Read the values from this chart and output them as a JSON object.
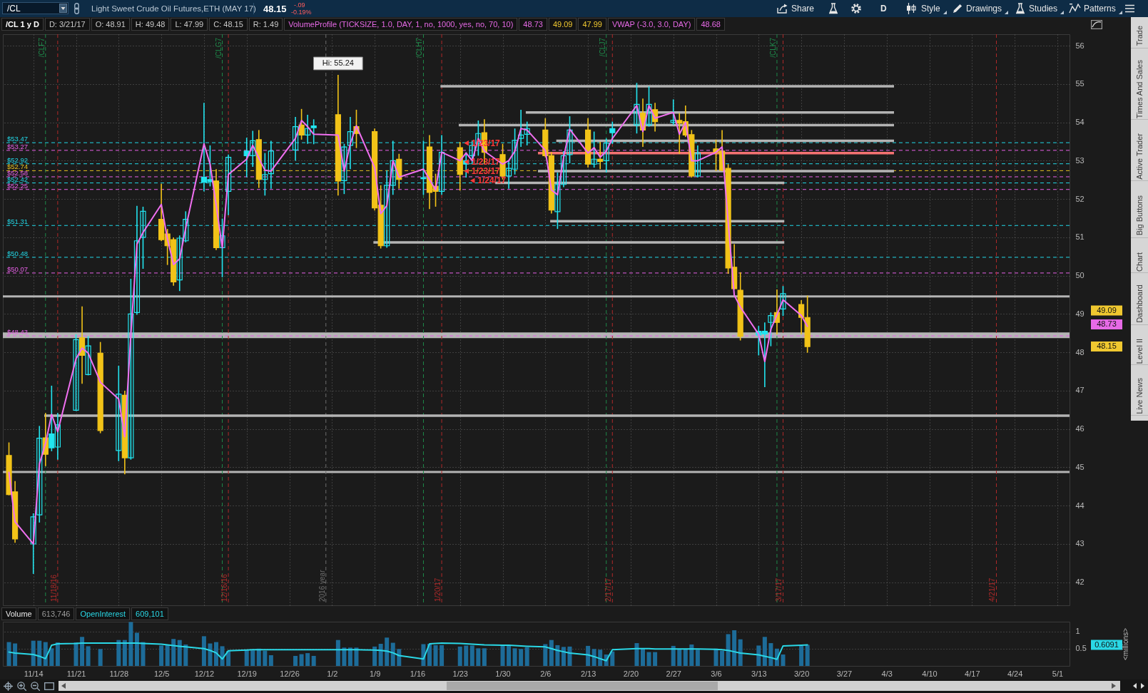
{
  "chart_data": [
    {
      "type": "other",
      "title": "Light Sweet Crude Oil Futures,ETH (MAY 17)",
      "annotations": [
        "/CL",
        "48.15",
        "-.09",
        "-0.19%",
        "Share",
        "D",
        "Style",
        "Drawings",
        "Studies",
        "Patterns"
      ]
    },
    {
      "type": "candlestick",
      "title": "/CL 1 y D",
      "annotations": [
        "D: 3/21/17",
        "O: 48.91",
        "H: 49.48",
        "L: 47.99",
        "C: 48.15",
        "R: 1.49",
        "VolumeProfile (TICKSIZE, 1.0, DAY, 1, no, 1000, yes, no, 70, 10)",
        "48.73",
        "49.09",
        "47.99",
        "VWAP (-3.0, 3.0, DAY)",
        "48.68",
        "49.09",
        "48.73",
        "48.15",
        {
          "text": "Hi: 55.24",
          "x": "2017-01-03",
          "y": 55.24
        },
        {
          "text": "1/23/17",
          "x": "2017-01-23",
          "y": 53.46
        },
        {
          "text": "1/23/17",
          "x": "2017-01-23",
          "y": 52.97
        },
        {
          "text": "1/23/17",
          "x": "2017-01-23",
          "y": 52.73
        },
        {
          "text": "1/24/17",
          "x": "2017-01-24",
          "y": 52.48
        }
      ],
      "x": [
        "2016-11-10",
        "2016-11-11",
        "2016-11-14",
        "2016-11-15",
        "2016-11-16",
        "2016-11-17",
        "2016-11-18",
        "2016-11-21",
        "2016-11-22",
        "2016-11-23",
        "2016-11-25",
        "2016-11-28",
        "2016-11-29",
        "2016-11-30",
        "2016-12-01",
        "2016-12-02",
        "2016-12-05",
        "2016-12-06",
        "2016-12-07",
        "2016-12-08",
        "2016-12-09",
        "2016-12-12",
        "2016-12-13",
        "2016-12-14",
        "2016-12-15",
        "2016-12-16",
        "2016-12-19",
        "2016-12-20",
        "2016-12-21",
        "2016-12-22",
        "2016-12-23",
        "2016-12-27",
        "2016-12-28",
        "2016-12-29",
        "2016-12-30",
        "2017-01-03",
        "2017-01-04",
        "2017-01-05",
        "2017-01-06",
        "2017-01-09",
        "2017-01-10",
        "2017-01-11",
        "2017-01-12",
        "2017-01-13",
        "2017-01-17",
        "2017-01-18",
        "2017-01-19",
        "2017-01-20",
        "2017-01-23",
        "2017-01-24",
        "2017-01-25",
        "2017-01-26",
        "2017-01-27",
        "2017-01-30",
        "2017-01-31",
        "2017-02-01",
        "2017-02-02",
        "2017-02-03",
        "2017-02-06",
        "2017-02-07",
        "2017-02-08",
        "2017-02-09",
        "2017-02-10",
        "2017-02-13",
        "2017-02-14",
        "2017-02-15",
        "2017-02-16",
        "2017-02-17",
        "2017-02-21",
        "2017-02-22",
        "2017-02-23",
        "2017-02-24",
        "2017-02-27",
        "2017-02-28",
        "2017-03-01",
        "2017-03-02",
        "2017-03-03",
        "2017-03-06",
        "2017-03-07",
        "2017-03-08",
        "2017-03-09",
        "2017-03-10",
        "2017-03-13",
        "2017-03-14",
        "2017-03-15",
        "2017-03-16",
        "2017-03-17",
        "2017-03-20",
        "2017-03-21"
      ],
      "ohlc": [
        [
          45.31,
          45.65,
          44.27,
          44.29
        ],
        [
          44.36,
          44.64,
          43.03,
          43.13
        ],
        [
          43.0,
          43.8,
          42.22,
          43.71
        ],
        [
          43.76,
          46.08,
          43.56,
          45.76
        ],
        [
          45.77,
          46.42,
          45.03,
          45.34
        ],
        [
          45.87,
          47.13,
          45.42,
          45.51
        ],
        [
          45.53,
          46.42,
          45.2,
          46.11
        ],
        [
          46.49,
          48.47,
          46.47,
          48.33
        ],
        [
          48.38,
          49.2,
          47.18,
          47.92
        ],
        [
          47.42,
          48.42,
          47.4,
          48.17
        ],
        [
          47.98,
          48.27,
          45.89,
          45.96
        ],
        [
          45.44,
          47.65,
          45.16,
          46.91
        ],
        [
          46.88,
          47.0,
          44.82,
          45.25
        ],
        [
          45.25,
          49.92,
          45.2,
          49.0
        ],
        [
          49.04,
          51.82,
          48.98,
          50.91
        ],
        [
          51.0,
          51.8,
          50.18,
          51.68
        ],
        [
          51.47,
          52.4,
          50.9,
          50.94
        ],
        [
          51.09,
          51.22,
          50.28,
          50.78
        ],
        [
          50.94,
          51.0,
          49.74,
          49.84
        ],
        [
          49.89,
          51.05,
          49.6,
          50.98
        ],
        [
          50.91,
          51.68,
          50.87,
          51.47
        ],
        [
          52.57,
          54.51,
          52.2,
          52.44
        ],
        [
          52.51,
          53.4,
          52.33,
          52.45
        ],
        [
          52.47,
          52.78,
          50.67,
          50.73
        ],
        [
          50.73,
          51.49,
          49.96,
          51.04
        ],
        [
          52.2,
          53.16,
          51.58,
          53.09
        ],
        [
          53.25,
          53.6,
          52.57,
          53.13
        ],
        [
          53.13,
          53.78,
          52.84,
          53.52
        ],
        [
          53.55,
          53.8,
          52.29,
          52.51
        ],
        [
          52.51,
          53.2,
          52.09,
          52.64
        ],
        [
          52.66,
          53.52,
          52.27,
          53.25
        ],
        [
          53.28,
          54.14,
          53.0,
          53.89
        ],
        [
          53.93,
          54.35,
          53.55,
          53.67
        ],
        [
          53.67,
          54.2,
          53.44,
          53.84
        ],
        [
          53.91,
          54.08,
          53.43,
          53.86
        ],
        [
          54.2,
          55.24,
          52.09,
          52.47
        ],
        [
          52.48,
          53.44,
          52.13,
          53.36
        ],
        [
          53.4,
          54.14,
          52.78,
          53.76
        ],
        [
          53.89,
          54.33,
          53.33,
          53.71
        ],
        [
          53.76,
          53.84,
          51.7,
          51.77
        ],
        [
          51.84,
          52.36,
          50.71,
          50.78
        ],
        [
          50.78,
          52.75,
          50.73,
          52.36
        ],
        [
          52.36,
          53.52,
          52.11,
          53.0
        ],
        [
          53.04,
          53.18,
          52.27,
          52.51
        ],
        [
          52.56,
          53.52,
          52.11,
          52.53
        ],
        [
          53.36,
          53.67,
          51.74,
          52.17
        ],
        [
          52.33,
          52.66,
          51.8,
          52.2
        ],
        [
          52.2,
          53.67,
          52.11,
          53.22
        ],
        [
          53.34,
          53.49,
          52.22,
          52.64
        ],
        [
          53.0,
          53.22,
          52.56,
          52.91
        ],
        [
          53.13,
          53.53,
          52.91,
          53.4
        ],
        [
          53.44,
          54.05,
          53.13,
          53.71
        ],
        [
          53.73,
          54.08,
          52.91,
          53.22
        ],
        [
          53.16,
          53.44,
          52.51,
          52.6
        ],
        [
          52.6,
          53.0,
          52.27,
          52.8
        ],
        [
          52.78,
          53.84,
          52.64,
          53.53
        ],
        [
          53.58,
          54.33,
          53.36,
          53.67
        ],
        [
          53.69,
          54.02,
          53.4,
          53.84
        ],
        [
          53.8,
          54.11,
          53.09,
          53.13
        ],
        [
          53.13,
          53.22,
          51.62,
          51.71
        ],
        [
          51.67,
          52.69,
          51.22,
          52.38
        ],
        [
          52.38,
          53.25,
          52.31,
          53.13
        ],
        [
          53.16,
          54.16,
          52.93,
          53.8
        ],
        [
          53.8,
          54.11,
          52.82,
          52.91
        ],
        [
          52.91,
          53.76,
          52.82,
          53.04
        ],
        [
          53.04,
          53.49,
          52.78,
          52.98
        ],
        [
          53.0,
          53.58,
          52.69,
          53.46
        ],
        [
          53.84,
          54.02,
          53.44,
          53.73
        ],
        [
          53.93,
          55.03,
          53.71,
          54.47
        ],
        [
          54.24,
          54.62,
          53.36,
          53.8
        ],
        [
          53.93,
          54.94,
          53.89,
          54.47
        ],
        [
          54.33,
          54.51,
          53.76,
          54.02
        ],
        [
          54.0,
          54.6,
          53.93,
          54.05
        ],
        [
          54.05,
          54.24,
          53.18,
          53.98
        ],
        [
          54.02,
          54.44,
          53.62,
          53.67
        ],
        [
          53.68,
          53.8,
          52.56,
          52.6
        ],
        [
          52.6,
          53.4,
          52.56,
          53.2
        ],
        [
          53.31,
          53.55,
          52.73,
          53.22
        ],
        [
          53.25,
          53.8,
          52.73,
          52.75
        ],
        [
          52.8,
          52.91,
          50.05,
          50.2
        ],
        [
          50.22,
          50.82,
          49.64,
          49.66
        ],
        [
          49.62,
          50.09,
          48.31,
          48.42
        ],
        [
          48.55,
          48.69,
          47.92,
          48.45
        ],
        [
          48.55,
          48.78,
          47.09,
          48.48
        ],
        [
          48.78,
          49.04,
          48.16,
          48.96
        ],
        [
          49.04,
          49.64,
          48.47,
          48.78
        ],
        [
          49.13,
          49.73,
          48.95,
          49.53
        ],
        [
          49.25,
          49.36,
          48.47,
          48.91
        ],
        [
          48.91,
          49.48,
          47.99,
          48.15
        ]
      ],
      "colors": [
        "#f2c318",
        "#f2c318",
        "#22e5f0",
        "#22e5f0",
        "#f2c318",
        "#22e5f0",
        "#22e5f0",
        "#22e5f0",
        "#f2c318",
        "#22e5f0",
        "#f2c318",
        "#22e5f0",
        "#f2c318",
        "#22e5f0",
        "#22e5f0",
        "#22e5f0",
        "#f2c318",
        "#f2c318",
        "#f2c318",
        "#22e5f0",
        "#22e5f0",
        "#22e5f0",
        "#22e5f0",
        "#f2c318",
        "#22e5f0",
        "#22e5f0",
        "#22e5f0",
        "#22e5f0",
        "#f2c318",
        "#22e5f0",
        "#22e5f0",
        "#22e5f0",
        "#f2c318",
        "#22e5f0",
        "#22e5f0",
        "#f2c318",
        "#22e5f0",
        "#22e5f0",
        "#f2c318",
        "#f2c318",
        "#f2c318",
        "#22e5f0",
        "#22e5f0",
        "#f2c318",
        "#22e5f0",
        "#f2c318",
        "#f2c318",
        "#22e5f0",
        "#f2c318",
        "#22e5f0",
        "#22e5f0",
        "#22e5f0",
        "#f2c318",
        "#f2c318",
        "#22e5f0",
        "#22e5f0",
        "#22e5f0",
        "#22e5f0",
        "#f2c318",
        "#f2c318",
        "#22e5f0",
        "#22e5f0",
        "#22e5f0",
        "#f2c318",
        "#22e5f0",
        "#f2c318",
        "#22e5f0",
        "#22e5f0",
        "#22e5f0",
        "#f2c318",
        "#22e5f0",
        "#f2c318",
        "#22e5f0",
        "#f2c318",
        "#f2c318",
        "#f2c318",
        "#22e5f0",
        "#f2c318",
        "#f2c318",
        "#f2c318",
        "#f2c318",
        "#f2c318",
        "#22e5f0",
        "#22e5f0",
        "#22e5f0",
        "#f2c318",
        "#22e5f0",
        "#f2c318",
        "#f2c318"
      ],
      "series": [
        {
          "type": "line",
          "color": "#b4b4b4",
          "x": [
            "2017-01-20",
            "2017-04-04"
          ],
          "values": [
            54.94,
            54.94
          ]
        },
        {
          "type": "line",
          "color": "#b4b4b4",
          "x": [
            "2017-02-03",
            "2017-04-04"
          ],
          "values": [
            54.26,
            54.26
          ]
        },
        {
          "type": "line",
          "color": "#b4b4b4",
          "x": [
            "2017-01-23",
            "2017-04-04"
          ],
          "values": [
            53.93,
            53.93
          ]
        },
        {
          "type": "line",
          "color": "#b4b4b4",
          "x": [
            "2017-02-08",
            "2017-04-04"
          ],
          "values": [
            53.52,
            53.52
          ]
        },
        {
          "type": "line",
          "color": "#f47272",
          "x": [
            "2017-02-05",
            "2017-04-04"
          ],
          "values": [
            53.2,
            53.2
          ]
        },
        {
          "type": "line",
          "color": "#b4b4b4",
          "x": [
            "2017-02-05",
            "2017-04-04"
          ],
          "values": [
            52.73,
            52.73
          ]
        },
        {
          "type": "line",
          "color": "#b4b4b4",
          "x": [
            "2017-01-29",
            "2017-03-17"
          ],
          "values": [
            52.42,
            52.42
          ]
        },
        {
          "type": "line",
          "color": "#b4b4b4",
          "x": [
            "2017-02-07",
            "2017-03-17"
          ],
          "values": [
            51.42,
            51.42
          ]
        },
        {
          "type": "line",
          "color": "#b4b4b4",
          "x": [
            "2017-01-09",
            "2017-03-17"
          ],
          "values": [
            50.87,
            50.87
          ]
        },
        {
          "type": "line",
          "color": "#b4b4b4",
          "x": [
            "2016-11-16",
            "2017-05-03"
          ],
          "values": [
            46.35,
            46.35
          ]
        },
        {
          "type": "line",
          "color": "#f070f0",
          "values": [
            44.87,
            43.58,
            43.0,
            45.09,
            45.62,
            46.38,
            45.93,
            47.83,
            48.11,
            47.98,
            47.22,
            46.78,
            45.8,
            48.47,
            50.82,
            51.13,
            51.86,
            50.96,
            50.29,
            50.44,
            51.24,
            53.44,
            52.91,
            51.84,
            50.73,
            52.64,
            53.04,
            53.4,
            53.07,
            52.75,
            52.73,
            53.58,
            54.05,
            53.89,
            53.69,
            53.67,
            52.73,
            53.44,
            53.91,
            52.82,
            51.62,
            51.83,
            53.0,
            52.57,
            52.78,
            52.51,
            52.24,
            53.22,
            53.0,
            53.2,
            53.0,
            53.58,
            53.25,
            52.91,
            53.0,
            53.25,
            53.84,
            53.8,
            53.27,
            52.24,
            52.11,
            53.09,
            53.82,
            53.2,
            53.34,
            53.09,
            53.25,
            53.58,
            54.44,
            53.76,
            54.44,
            54.11,
            54.26,
            53.69,
            54.0,
            53.0,
            53.0,
            53.22,
            53.36,
            51.4,
            49.49,
            49.18,
            48.47,
            47.76,
            48.6,
            48.98,
            49.37,
            48.96,
            48.68
          ]
        }
      ],
      "ref_lines": [
        {
          "axis": "y",
          "value": 53.47,
          "label": "$53.47",
          "color": "#22d8e8",
          "line_style": "dashed"
        },
        {
          "axis": "y",
          "value": 53.27,
          "label": "$53.27",
          "color": "#e860e8",
          "line_style": "dashed"
        },
        {
          "axis": "y",
          "value": 52.92,
          "label": "$52.92",
          "color": "#22d8e8",
          "line_style": "dashed"
        },
        {
          "axis": "y",
          "value": 52.74,
          "label": "$52.74",
          "color": "#e8c020",
          "line_style": "dashed"
        },
        {
          "axis": "y",
          "value": 52.58,
          "label": "$52.58",
          "color": "#e860e8",
          "line_style": "dashed"
        },
        {
          "axis": "y",
          "value": 52.42,
          "label": "$52.42",
          "color": "#22d8e8",
          "line_style": "dashed"
        },
        {
          "axis": "y",
          "value": 52.25,
          "label": "$52.25",
          "color": "#e860e8",
          "line_style": "dashed"
        },
        {
          "axis": "y",
          "value": 51.31,
          "label": "$51.31",
          "color": "#22d8e8",
          "line_style": "dashed"
        },
        {
          "axis": "y",
          "value": 50.48,
          "label": "$50.48",
          "color": "#22d8e8",
          "line_style": "dashed"
        },
        {
          "axis": "y",
          "value": 50.07,
          "label": "$50.07",
          "color": "#e860e8",
          "line_style": "dashed"
        },
        {
          "axis": "y",
          "value": 48.43,
          "label": "$48.43",
          "color": "#e860e8",
          "line_style": "dashed"
        },
        {
          "axis": "y",
          "value": 49.46,
          "color": "#b4b4b4"
        },
        {
          "axis": "y",
          "value": 44.88,
          "color": "#b4b4b4"
        },
        {
          "axis": "x",
          "value": "2016-11-18",
          "label": "11/18/16",
          "color": "#b02a2a",
          "line_style": "dashed"
        },
        {
          "axis": "x",
          "value": "2016-12-16",
          "label": "12/16/16",
          "color": "#b02a2a",
          "line_style": "dashed"
        },
        {
          "axis": "x",
          "value": "2017-01-01",
          "label": "2016 year",
          "color": "#6e6e6e",
          "line_style": "dashed"
        },
        {
          "axis": "x",
          "value": "2017-01-20",
          "label": "1/20/17",
          "color": "#b02a2a",
          "line_style": "dashed"
        },
        {
          "axis": "x",
          "value": "2017-02-17",
          "label": "2/17/17",
          "color": "#b02a2a",
          "line_style": "dashed"
        },
        {
          "axis": "x",
          "value": "2017-03-17",
          "label": "3/17/17",
          "color": "#b02a2a",
          "line_style": "dashed"
        },
        {
          "axis": "x",
          "value": "2017-04-21",
          "label": "4/21/17",
          "color": "#b02a2a",
          "line_style": "dashed"
        },
        {
          "axis": "x",
          "value": "2016-11-16",
          "label": "/CLF7",
          "color": "#1e8a4a",
          "line_style": "dashed"
        },
        {
          "axis": "x",
          "value": "2016-12-15",
          "label": "/CLG7",
          "color": "#1e8a4a",
          "line_style": "dashed"
        },
        {
          "axis": "x",
          "value": "2017-01-17",
          "label": "/CLH7",
          "color": "#1e8a4a",
          "line_style": "dashed"
        },
        {
          "axis": "x",
          "value": "2017-02-16",
          "label": "/CLJ7",
          "color": "#1e8a4a",
          "line_style": "dashed"
        },
        {
          "axis": "x",
          "value": "2017-03-16",
          "label": "/CLK7",
          "color": "#1e8a4a",
          "line_style": "dashed"
        }
      ],
      "bands": [
        {
          "axis": "y",
          "from": 48.37,
          "to": 48.52,
          "color": "#b4b4b4"
        }
      ],
      "xlim": [
        "2016-11-09",
        "2017-05-03"
      ],
      "xticks": [
        {
          "value": "2016-11-14",
          "label": null
        },
        {
          "value": "2016-11-21",
          "label": null
        },
        {
          "value": "2016-11-28",
          "label": null
        },
        {
          "value": "2016-12-05",
          "label": null
        },
        {
          "value": "2016-12-12",
          "label": null
        },
        {
          "value": "2016-12-19",
          "label": null
        },
        {
          "value": "2016-12-26",
          "label": null
        },
        {
          "value": "2017-01-02",
          "label": null
        },
        {
          "value": "2017-01-09",
          "label": null
        },
        {
          "value": "2017-01-16",
          "label": null
        },
        {
          "value": "2017-01-23",
          "label": null
        },
        {
          "value": "2017-01-30",
          "label": null
        },
        {
          "value": "2017-02-06",
          "label": null
        },
        {
          "value": "2017-02-13",
          "label": null
        },
        {
          "value": "2017-02-20",
          "label": null
        },
        {
          "value": "2017-02-27",
          "label": null
        },
        {
          "value": "2017-03-06",
          "label": null
        },
        {
          "value": "2017-03-13",
          "label": null
        },
        {
          "value": "2017-03-20",
          "label": null
        },
        {
          "value": "2017-03-27",
          "label": null
        },
        {
          "value": "2017-04-03",
          "label": null
        },
        {
          "value": "2017-04-10",
          "label": null
        },
        {
          "value": "2017-04-17",
          "label": null
        },
        {
          "value": "2017-04-24",
          "label": null
        },
        {
          "value": "2017-05-01",
          "label": null
        }
      ],
      "ylim": [
        41.4,
        56.3
      ],
      "yticks": [
        42,
        43,
        44,
        45,
        46,
        47,
        48,
        49,
        50,
        51,
        52,
        53,
        54,
        55,
        56
      ],
      "grid": true,
      "tick_labels": "y"
    },
    {
      "type": "bar",
      "annotations": [
        "Volume",
        "613,746",
        "OpenInterest",
        "609,101",
        "0.6091"
      ],
      "x": [
        "2016-11-10",
        "2016-11-11",
        "2016-11-14",
        "2016-11-15",
        "2016-11-16",
        "2016-11-17",
        "2016-11-18",
        "2016-11-21",
        "2016-11-22",
        "2016-11-23",
        "2016-11-25",
        "2016-11-28",
        "2016-11-29",
        "2016-11-30",
        "2016-12-01",
        "2016-12-02",
        "2016-12-05",
        "2016-12-06",
        "2016-12-07",
        "2016-12-08",
        "2016-12-09",
        "2016-12-12",
        "2016-12-13",
        "2016-12-14",
        "2016-12-15",
        "2016-12-16",
        "2016-12-19",
        "2016-12-20",
        "2016-12-21",
        "2016-12-22",
        "2016-12-23",
        "2016-12-27",
        "2016-12-28",
        "2016-12-29",
        "2016-12-30",
        "2017-01-03",
        "2017-01-04",
        "2017-01-05",
        "2017-01-06",
        "2017-01-09",
        "2017-01-10",
        "2017-01-11",
        "2017-01-12",
        "2017-01-13",
        "2017-01-17",
        "2017-01-18",
        "2017-01-19",
        "2017-01-20",
        "2017-01-23",
        "2017-01-24",
        "2017-01-25",
        "2017-01-26",
        "2017-01-27",
        "2017-01-30",
        "2017-01-31",
        "2017-02-01",
        "2017-02-02",
        "2017-02-03",
        "2017-02-06",
        "2017-02-07",
        "2017-02-08",
        "2017-02-09",
        "2017-02-10",
        "2017-02-13",
        "2017-02-14",
        "2017-02-15",
        "2017-02-16",
        "2017-02-17",
        "2017-02-21",
        "2017-02-22",
        "2017-02-23",
        "2017-02-24",
        "2017-02-27",
        "2017-02-28",
        "2017-03-01",
        "2017-03-02",
        "2017-03-03",
        "2017-03-06",
        "2017-03-07",
        "2017-03-08",
        "2017-03-09",
        "2017-03-10",
        "2017-03-13",
        "2017-03-14",
        "2017-03-15",
        "2017-03-16",
        "2017-03-17",
        "2017-03-20",
        "2017-03-21"
      ],
      "series": [
        {
          "type": "bar",
          "color": "#1d6c99",
          "values": [
            0.69,
            0.65,
            0.73,
            0.73,
            0.69,
            0.51,
            0.68,
            0.68,
            0.84,
            0.57,
            0.49,
            0.75,
            0.75,
            1.27,
            0.96,
            0.69,
            0.59,
            0.62,
            0.78,
            0.75,
            0.62,
            0.86,
            0.65,
            0.69,
            0.57,
            0.43,
            0.47,
            0.45,
            0.5,
            0.44,
            0.31,
            0.29,
            0.34,
            0.37,
            0.29,
            0.75,
            0.53,
            0.53,
            0.53,
            0.56,
            0.64,
            0.82,
            0.67,
            0.49,
            0.63,
            0.64,
            0.6,
            0.6,
            0.56,
            0.59,
            0.59,
            0.51,
            0.51,
            0.6,
            0.59,
            0.51,
            0.49,
            0.54,
            0.63,
            0.75,
            0.6,
            0.55,
            0.56,
            0.58,
            0.49,
            0.47,
            0.33,
            0.42,
            0.66,
            0.5,
            0.4,
            0.4,
            0.58,
            0.48,
            0.48,
            0.62,
            0.47,
            0.5,
            0.44,
            0.92,
            1.03,
            0.77,
            0.59,
            0.84,
            0.66,
            0.5,
            0.33,
            0.58,
            0.61
          ]
        },
        {
          "type": "line",
          "color": "#2ad8e6",
          "values": [
            0.4,
            0.37,
            0.33,
            0.28,
            0.21,
            0.6,
            0.64,
            0.65,
            0.66,
            0.66,
            0.66,
            0.66,
            0.66,
            0.66,
            0.66,
            0.65,
            0.63,
            0.61,
            0.59,
            0.57,
            0.55,
            0.5,
            0.45,
            0.38,
            0.2,
            0.44,
            0.46,
            0.47,
            0.47,
            0.47,
            0.47,
            0.47,
            0.47,
            0.47,
            0.47,
            0.47,
            0.47,
            0.47,
            0.47,
            0.46,
            0.45,
            0.43,
            0.38,
            0.3,
            0.2,
            0.64,
            0.65,
            0.66,
            0.65,
            0.64,
            0.63,
            0.62,
            0.61,
            0.6,
            0.6,
            0.59,
            0.58,
            0.57,
            0.55,
            0.5,
            0.45,
            0.41,
            0.37,
            0.32,
            0.27,
            0.21,
            0.15,
            0.47,
            0.5,
            0.5,
            0.5,
            0.49,
            0.49,
            0.49,
            0.49,
            0.49,
            0.49,
            0.48,
            0.47,
            0.45,
            0.41,
            0.37,
            0.32,
            0.28,
            0.24,
            0.19,
            0.58,
            0.6,
            0.6091
          ]
        }
      ],
      "xlim": [
        "2016-11-09",
        "2017-05-03"
      ],
      "xticks": [
        {
          "value": "2016-11-14",
          "label": "11/14"
        },
        {
          "value": "2016-11-21",
          "label": "11/21"
        },
        {
          "value": "2016-11-28",
          "label": "11/28"
        },
        {
          "value": "2016-12-05",
          "label": "12/5"
        },
        {
          "value": "2016-12-12",
          "label": "12/12"
        },
        {
          "value": "2016-12-19",
          "label": "12/19"
        },
        {
          "value": "2016-12-26",
          "label": "12/26"
        },
        {
          "value": "2017-01-02",
          "label": "1/2"
        },
        {
          "value": "2017-01-09",
          "label": "1/9"
        },
        {
          "value": "2017-01-16",
          "label": "1/16"
        },
        {
          "value": "2017-01-23",
          "label": "1/23"
        },
        {
          "value": "2017-01-30",
          "label": "1/30"
        },
        {
          "value": "2017-02-06",
          "label": "2/6"
        },
        {
          "value": "2017-02-13",
          "label": "2/13"
        },
        {
          "value": "2017-02-20",
          "label": "2/20"
        },
        {
          "value": "2017-02-27",
          "label": "2/27"
        },
        {
          "value": "2017-03-06",
          "label": "3/6"
        },
        {
          "value": "2017-03-13",
          "label": "3/13"
        },
        {
          "value": "2017-03-20",
          "label": "3/20"
        },
        {
          "value": "2017-03-27",
          "label": "3/27"
        },
        {
          "value": "2017-04-03",
          "label": "4/3"
        },
        {
          "value": "2017-04-10",
          "label": "4/10"
        },
        {
          "value": "2017-04-17",
          "label": "4/17"
        },
        {
          "value": "2017-04-24",
          "label": "4/24"
        },
        {
          "value": "2017-05-01",
          "label": "5/1"
        }
      ],
      "ylim": [
        0,
        1.28
      ],
      "yticks": [
        0.5,
        1
      ],
      "ylabel": "<millions>",
      "grid": "y"
    },
    {
      "type": "other",
      "annotations": [
        "Trade",
        "Times And Sales",
        "Active Trader",
        "Big Buttons",
        "Chart",
        "Dashboard",
        "Level II",
        "Live News"
      ]
    }
  ]
}
